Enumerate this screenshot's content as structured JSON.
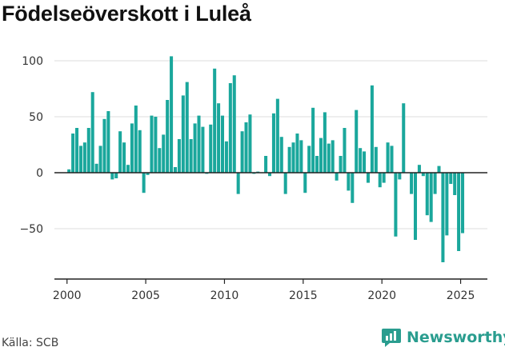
{
  "title": "Födelseöverskott i Luleå",
  "source": "Källa: SCB",
  "brand": {
    "name": "Newsworthy",
    "icon": "newsworthy-logo-icon",
    "color": "#2a9d8f"
  },
  "colors": {
    "bar": "#1aa79c",
    "grid": "#dcdcdc",
    "zero_line": "#222222",
    "axis": "#222222"
  },
  "chart_data": {
    "type": "bar",
    "title": "Födelseöverskott i Luleå",
    "xlabel": "",
    "ylabel": "",
    "frequency": "quarterly",
    "x_start": "2000-Q1",
    "xlim": [
      1999.2,
      2026.7
    ],
    "ylim": [
      -95,
      110
    ],
    "yticks": [
      -50,
      0,
      50,
      100
    ],
    "xticks": [
      2000,
      2005,
      2010,
      2015,
      2020,
      2025
    ],
    "grid": true,
    "values": [
      3,
      35,
      40,
      24,
      27,
      40,
      72,
      8,
      24,
      48,
      55,
      -6,
      -5,
      37,
      27,
      7,
      44,
      60,
      38,
      -18,
      -2,
      51,
      50,
      22,
      34,
      65,
      104,
      5,
      30,
      69,
      81,
      30,
      44,
      51,
      41,
      -1,
      43,
      93,
      62,
      51,
      28,
      80,
      87,
      -19,
      37,
      45,
      52,
      -1,
      1,
      0,
      15,
      -3,
      53,
      66,
      32,
      -19,
      23,
      27,
      35,
      29,
      -18,
      24,
      58,
      15,
      31,
      54,
      26,
      29,
      -7,
      15,
      40,
      -16,
      -27,
      56,
      22,
      19,
      -9,
      78,
      23,
      -13,
      -9,
      27,
      24,
      -57,
      -6,
      62,
      0,
      -19,
      -60,
      7,
      -3,
      -38,
      -44,
      -19,
      6,
      -80,
      -56,
      -10,
      -20,
      -70,
      -54
    ]
  }
}
